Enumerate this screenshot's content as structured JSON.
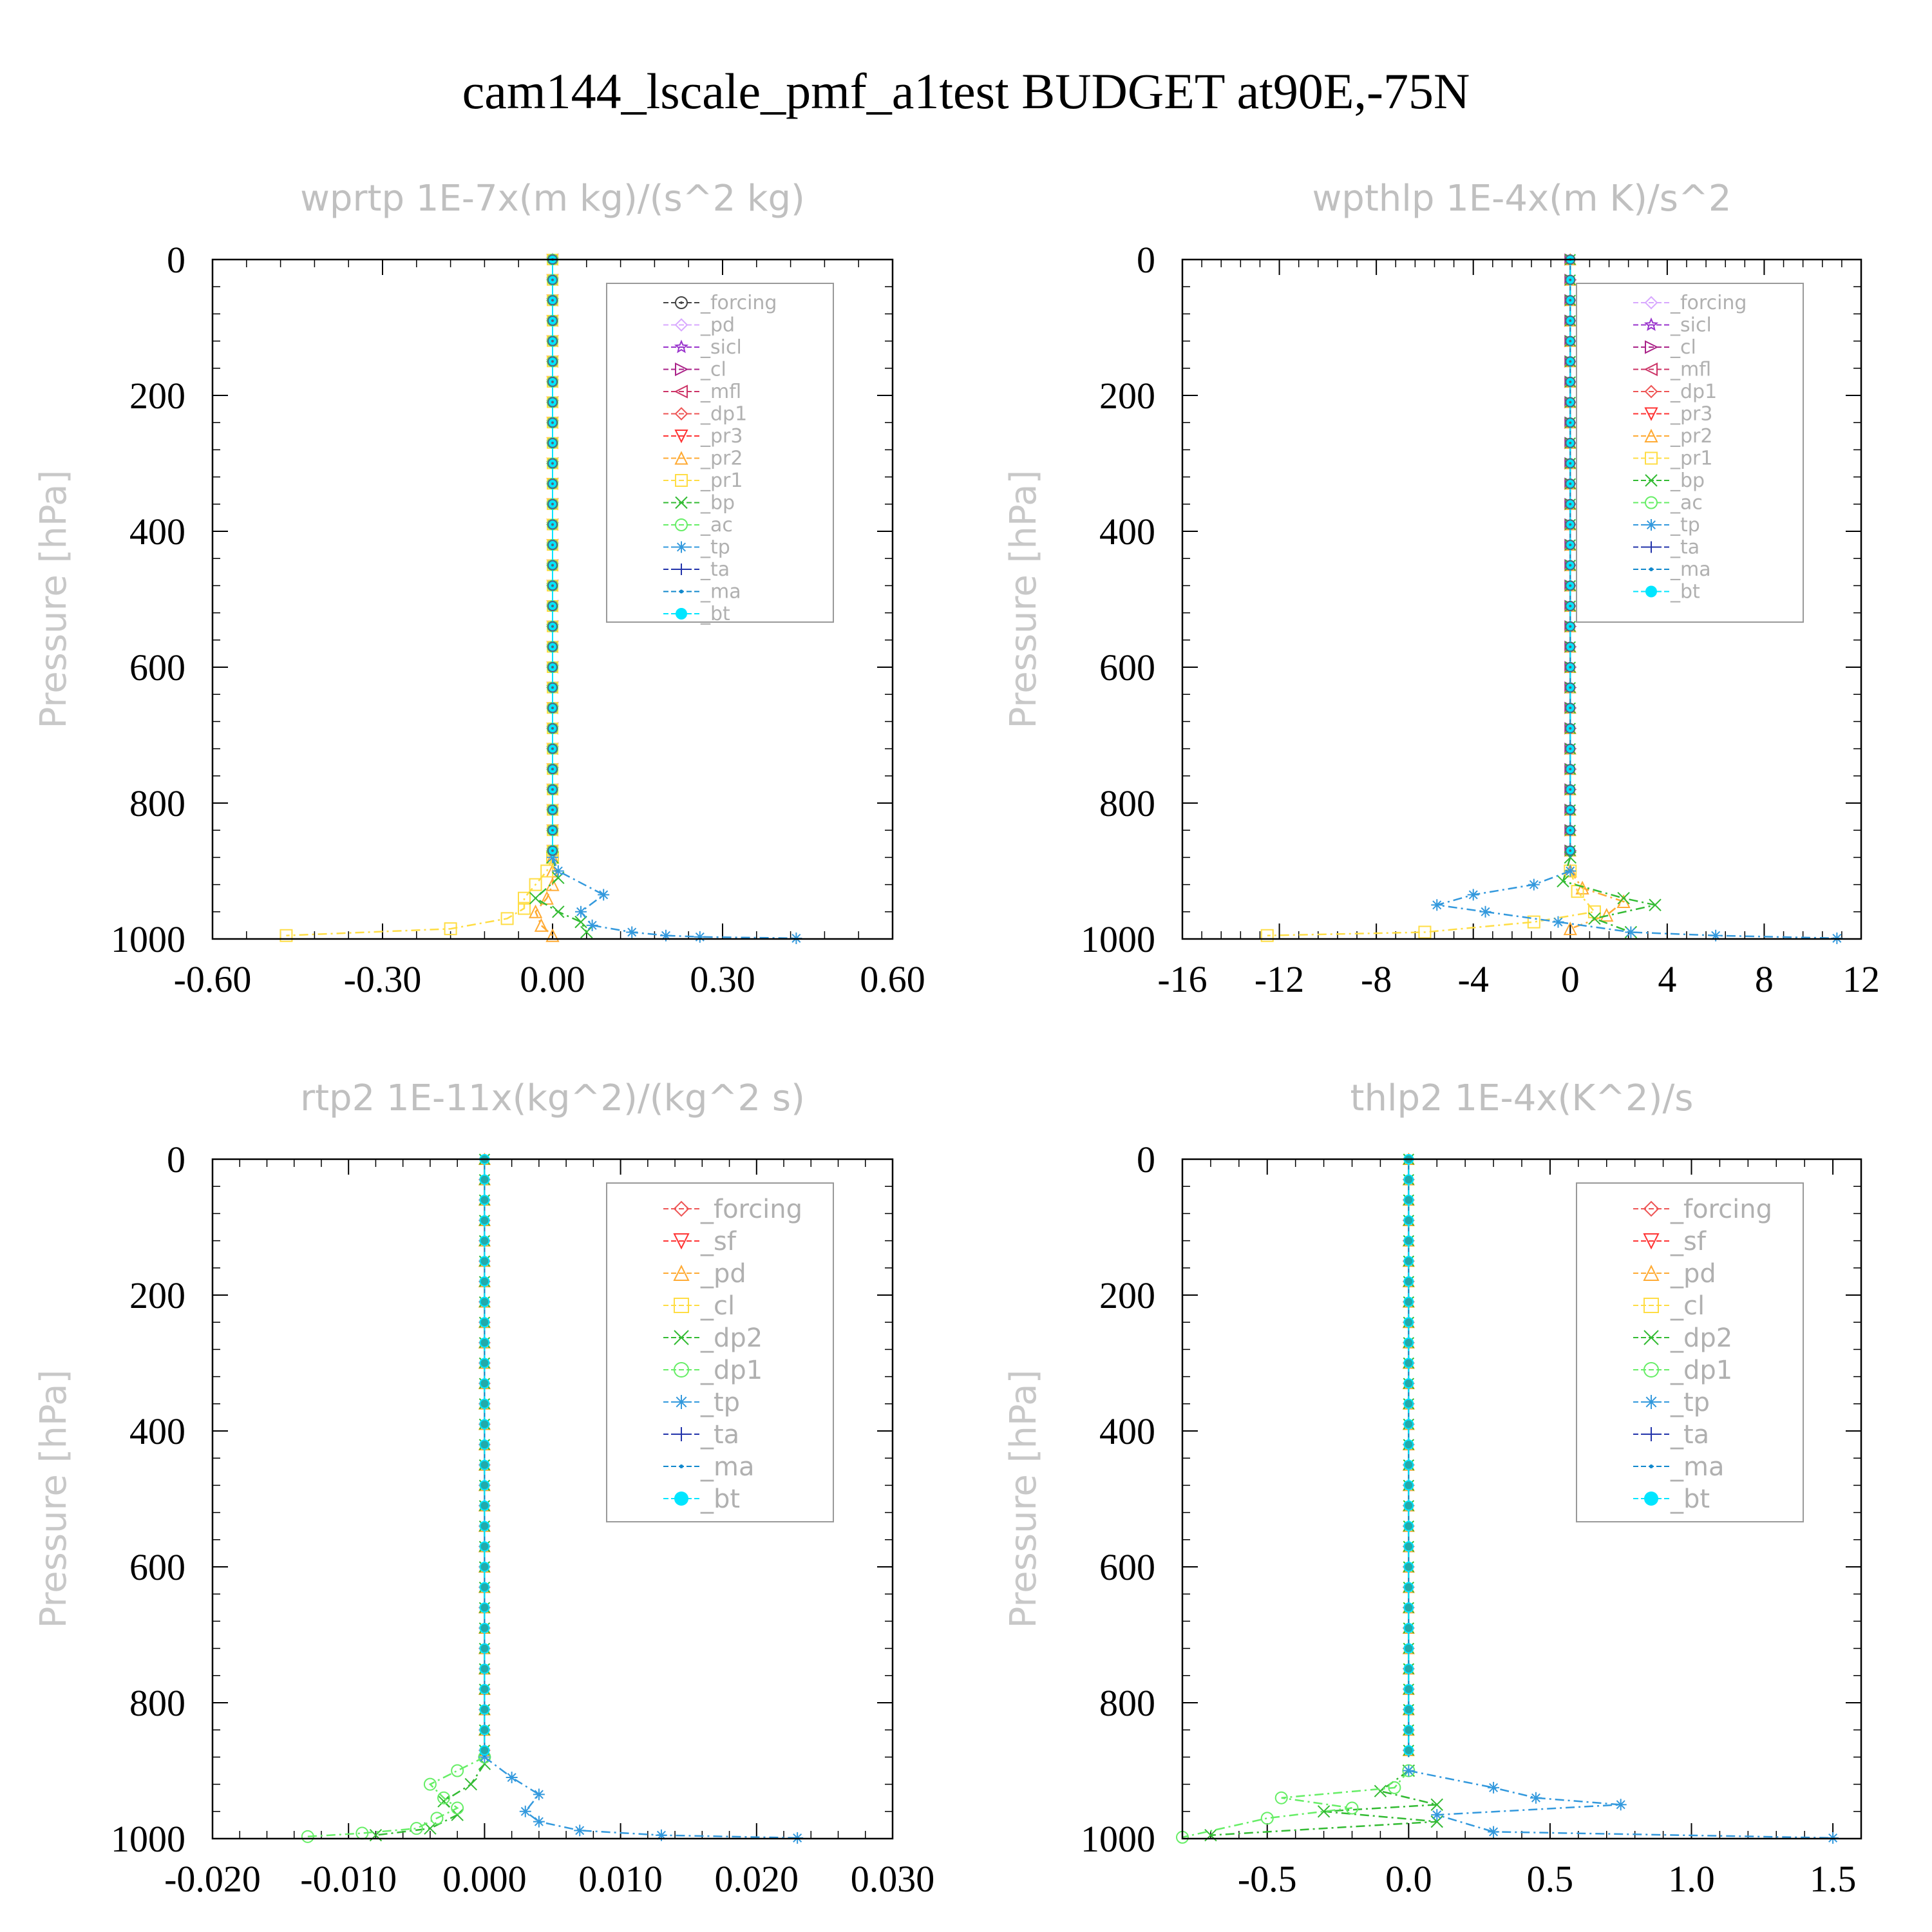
{
  "figure": {
    "title": "cam144_lscale_pmf_a1test  BUDGET at90E,-75N"
  },
  "chart_data": [
    {
      "type": "line",
      "title": "wprtp  1E-7x(m kg)/(s^2 kg)",
      "ylabel": "Pressure [hPa]",
      "xlim": [
        -0.6,
        0.6
      ],
      "xticks": [
        "-0.60",
        "-0.30",
        "0.00",
        "0.30",
        "0.60"
      ],
      "xtick_values": [
        -0.6,
        -0.3,
        0.0,
        0.3,
        0.6
      ],
      "ylim": [
        0,
        1000
      ],
      "yticks": [
        "0",
        "200",
        "400",
        "600",
        "800",
        "1000"
      ],
      "ytick_values": [
        0,
        200,
        400,
        600,
        800,
        1000
      ],
      "legend_position": "top-right",
      "series": [
        {
          "name": "_forcing",
          "color": "#444444",
          "marker": "circle-dot"
        },
        {
          "name": "_pd",
          "color": "#d8a8ff",
          "marker": "diamond"
        },
        {
          "name": "_sicl",
          "color": "#9933cc",
          "marker": "star"
        },
        {
          "name": "_cl",
          "color": "#aa2288",
          "marker": "tri-right"
        },
        {
          "name": "_mfl",
          "color": "#cc3366",
          "marker": "tri-left"
        },
        {
          "name": "_dp1",
          "color": "#ee5555",
          "marker": "diamond"
        },
        {
          "name": "_pr3",
          "color": "#ff3333",
          "marker": "tri-down"
        },
        {
          "name": "_pr2",
          "color": "#ffaa33",
          "marker": "tri-up",
          "x": [
            0,
            0,
            0,
            -0.01,
            -0.03,
            -0.02,
            0
          ],
          "p": [
            880,
            900,
            920,
            940,
            960,
            980,
            995
          ]
        },
        {
          "name": "_pr1",
          "color": "#ffdd44",
          "marker": "square",
          "x": [
            0,
            -0.01,
            -0.03,
            -0.05,
            -0.05,
            -0.08,
            -0.18,
            -0.47
          ],
          "p": [
            880,
            900,
            920,
            940,
            955,
            970,
            985,
            995
          ]
        },
        {
          "name": "_bp",
          "color": "#33bb33",
          "marker": "x",
          "x": [
            0,
            0.01,
            -0.03,
            0.01,
            0.05,
            0.06
          ],
          "p": [
            880,
            910,
            940,
            960,
            975,
            990
          ]
        },
        {
          "name": "_ac",
          "color": "#66ee66",
          "marker": "circle"
        },
        {
          "name": "_tp",
          "color": "#3399dd",
          "marker": "asterisk",
          "x": [
            0,
            0.01,
            0.09,
            0.05,
            0.07,
            0.14,
            0.2,
            0.26,
            0.43
          ],
          "p": [
            880,
            900,
            935,
            960,
            980,
            990,
            995,
            997,
            999
          ]
        },
        {
          "name": "_ta",
          "color": "#2233aa",
          "marker": "plus"
        },
        {
          "name": "_ma",
          "color": "#1188cc",
          "marker": "dot"
        },
        {
          "name": "_bt",
          "color": "#00e5ff",
          "marker": "filled-circle"
        }
      ]
    },
    {
      "type": "line",
      "title": "wpthlp  1E-4x(m K)/s^2",
      "ylabel": "Pressure [hPa]",
      "xlim": [
        -16,
        12
      ],
      "xticks": [
        "-16",
        "-12",
        "-8",
        "-4",
        "0",
        "4",
        "8",
        "12"
      ],
      "xtick_values": [
        -16,
        -12,
        -8,
        -4,
        0,
        4,
        8,
        12
      ],
      "ylim": [
        0,
        1000
      ],
      "yticks": [
        "0",
        "200",
        "400",
        "600",
        "800",
        "1000"
      ],
      "ytick_values": [
        0,
        200,
        400,
        600,
        800,
        1000
      ],
      "legend_position": "top-right",
      "series": [
        {
          "name": "_forcing",
          "color": "#d8a8ff",
          "marker": "diamond"
        },
        {
          "name": "_sicl",
          "color": "#9933cc",
          "marker": "star"
        },
        {
          "name": "_cl",
          "color": "#aa2288",
          "marker": "tri-right"
        },
        {
          "name": "_mfl",
          "color": "#cc3366",
          "marker": "tri-left"
        },
        {
          "name": "_dp1",
          "color": "#ee5555",
          "marker": "diamond"
        },
        {
          "name": "_pr3",
          "color": "#ff3333",
          "marker": "tri-down"
        },
        {
          "name": "_pr2",
          "color": "#ffaa33",
          "marker": "tri-up",
          "x": [
            0,
            0.5,
            2.2,
            1.5,
            0
          ],
          "p": [
            900,
            925,
            945,
            965,
            985
          ]
        },
        {
          "name": "_pr1",
          "color": "#ffdd44",
          "marker": "square",
          "x": [
            0,
            0.3,
            1.0,
            -1.5,
            -6.0,
            -12.5
          ],
          "p": [
            900,
            930,
            960,
            975,
            990,
            995
          ]
        },
        {
          "name": "_bp",
          "color": "#33bb33",
          "marker": "x",
          "x": [
            0,
            -0.3,
            2.2,
            3.5,
            1.0,
            2.5
          ],
          "p": [
            880,
            915,
            940,
            950,
            970,
            990
          ]
        },
        {
          "name": "_ac",
          "color": "#66ee66",
          "marker": "circle"
        },
        {
          "name": "_tp",
          "color": "#3399dd",
          "marker": "asterisk",
          "x": [
            0,
            -1.5,
            -4.0,
            -5.5,
            -3.5,
            -0.5,
            2.5,
            6.0,
            11.0
          ],
          "p": [
            900,
            920,
            935,
            950,
            960,
            975,
            990,
            995,
            999
          ]
        },
        {
          "name": "_ta",
          "color": "#2233aa",
          "marker": "plus"
        },
        {
          "name": "_ma",
          "color": "#1188cc",
          "marker": "dot"
        },
        {
          "name": "_bt",
          "color": "#00e5ff",
          "marker": "filled-circle"
        }
      ]
    },
    {
      "type": "line",
      "title": "rtp2  1E-11x(kg^2)/(kg^2 s)",
      "ylabel": "Pressure [hPa]",
      "xlim": [
        -0.02,
        0.03
      ],
      "xticks": [
        "-0.020",
        "-0.010",
        "0.000",
        "0.010",
        "0.020",
        "0.030"
      ],
      "xtick_values": [
        -0.02,
        -0.01,
        0.0,
        0.01,
        0.02,
        0.03
      ],
      "ylim": [
        0,
        1000
      ],
      "yticks": [
        "0",
        "200",
        "400",
        "600",
        "800",
        "1000"
      ],
      "ytick_values": [
        0,
        200,
        400,
        600,
        800,
        1000
      ],
      "legend_position": "top-right",
      "series": [
        {
          "name": "_forcing",
          "color": "#ee5555",
          "marker": "diamond"
        },
        {
          "name": "_sf",
          "color": "#ff3333",
          "marker": "tri-down"
        },
        {
          "name": "_pd",
          "color": "#ffaa33",
          "marker": "tri-up"
        },
        {
          "name": "_cl",
          "color": "#ffdd44",
          "marker": "square"
        },
        {
          "name": "_dp2",
          "color": "#33bb33",
          "marker": "x",
          "x": [
            0,
            -0.001,
            -0.003,
            -0.002,
            -0.004,
            -0.008
          ],
          "p": [
            890,
            920,
            945,
            965,
            985,
            995
          ]
        },
        {
          "name": "_dp1",
          "color": "#66ee66",
          "marker": "circle",
          "x": [
            0,
            -0.002,
            -0.004,
            -0.003,
            -0.002,
            -0.0035,
            -0.005,
            -0.009,
            -0.013
          ],
          "p": [
            880,
            900,
            920,
            940,
            955,
            970,
            985,
            992,
            997
          ]
        },
        {
          "name": "_tp",
          "color": "#3399dd",
          "marker": "asterisk",
          "x": [
            0,
            0.002,
            0.004,
            0.003,
            0.004,
            0.007,
            0.013,
            0.023
          ],
          "p": [
            880,
            910,
            935,
            960,
            975,
            988,
            995,
            999
          ]
        },
        {
          "name": "_ta",
          "color": "#2233aa",
          "marker": "plus"
        },
        {
          "name": "_ma",
          "color": "#1188cc",
          "marker": "dot"
        },
        {
          "name": "_bt",
          "color": "#00e5ff",
          "marker": "filled-circle"
        }
      ]
    },
    {
      "type": "line",
      "title": "thlp2  1E-4x(K^2)/s",
      "ylabel": "Pressure [hPa]",
      "xlim": [
        -0.8,
        1.6
      ],
      "xticks": [
        "-0.5",
        "0.0",
        "0.5",
        "1.0",
        "1.5"
      ],
      "xtick_values": [
        -0.5,
        0.0,
        0.5,
        1.0,
        1.5
      ],
      "ylim": [
        0,
        1000
      ],
      "yticks": [
        "0",
        "200",
        "400",
        "600",
        "800",
        "1000"
      ],
      "ytick_values": [
        0,
        200,
        400,
        600,
        800,
        1000
      ],
      "legend_position": "top-right",
      "series": [
        {
          "name": "_forcing",
          "color": "#ee5555",
          "marker": "diamond"
        },
        {
          "name": "_sf",
          "color": "#ff3333",
          "marker": "tri-down"
        },
        {
          "name": "_pd",
          "color": "#ffaa33",
          "marker": "tri-up"
        },
        {
          "name": "_cl",
          "color": "#ffdd44",
          "marker": "square"
        },
        {
          "name": "_dp2",
          "color": "#33bb33",
          "marker": "x",
          "x": [
            0,
            -0.1,
            0.1,
            -0.3,
            0.1,
            -0.7
          ],
          "p": [
            900,
            930,
            950,
            960,
            975,
            995
          ]
        },
        {
          "name": "_dp1",
          "color": "#66ee66",
          "marker": "circle",
          "x": [
            0,
            -0.05,
            -0.45,
            -0.2,
            -0.5,
            -0.8
          ],
          "p": [
            900,
            925,
            940,
            955,
            970,
            998
          ]
        },
        {
          "name": "_tp",
          "color": "#3399dd",
          "marker": "asterisk",
          "x": [
            0,
            0.3,
            0.45,
            0.75,
            0.1,
            0.3,
            1.5
          ],
          "p": [
            900,
            925,
            940,
            950,
            965,
            990,
            999
          ]
        },
        {
          "name": "_ta",
          "color": "#2233aa",
          "marker": "plus"
        },
        {
          "name": "_ma",
          "color": "#1188cc",
          "marker": "dot"
        },
        {
          "name": "_bt",
          "color": "#00e5ff",
          "marker": "filled-circle"
        }
      ]
    }
  ]
}
